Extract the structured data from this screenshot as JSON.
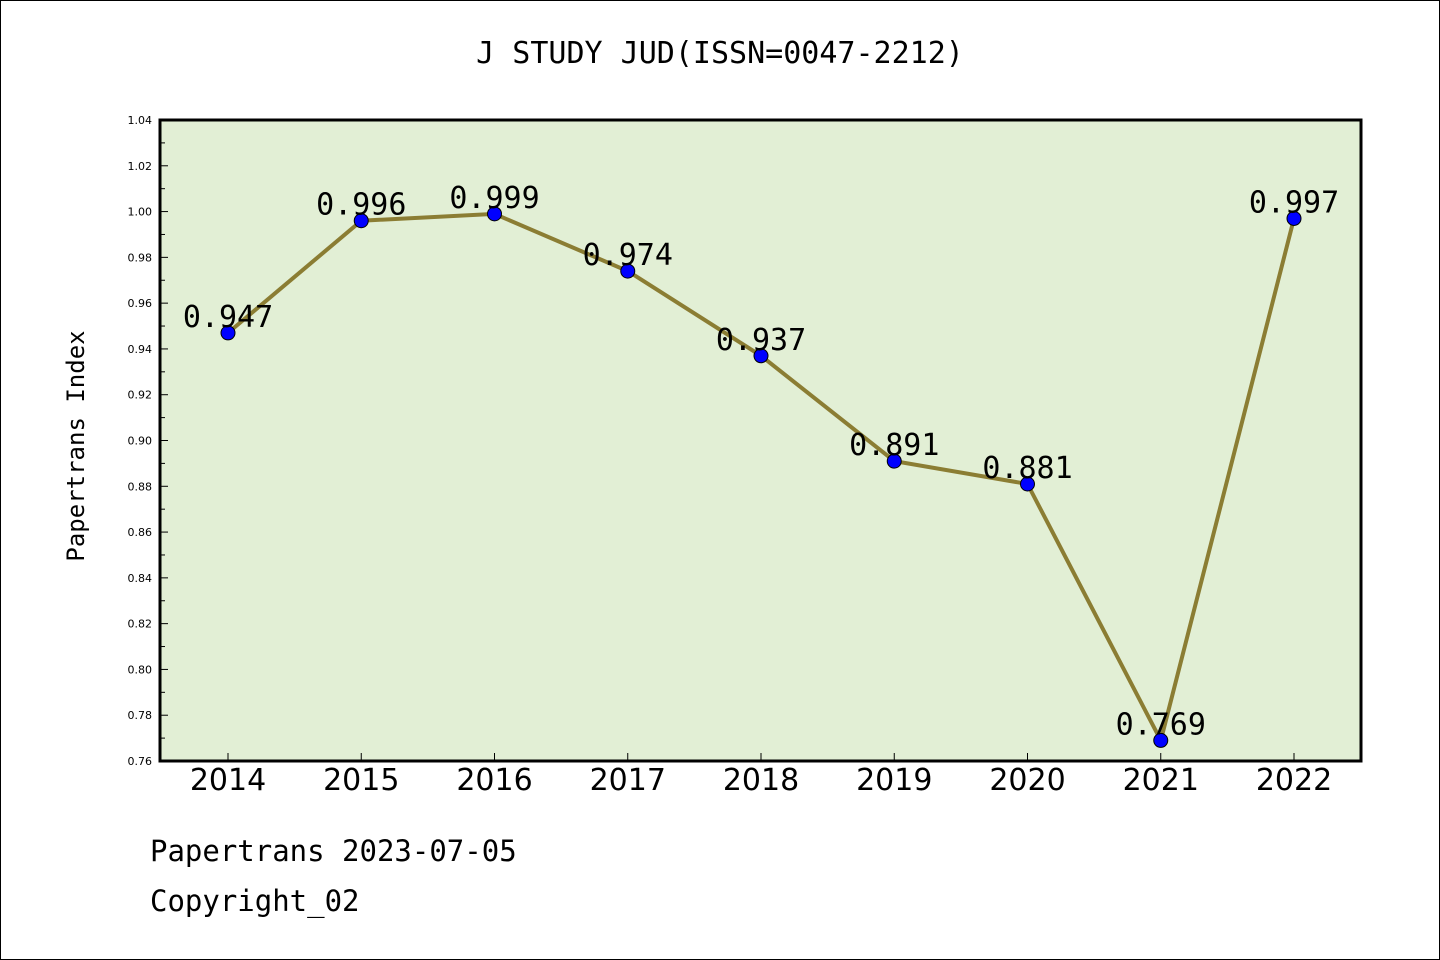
{
  "footer": {
    "line1": "Papertrans 2023-07-05",
    "line2": "Copyright_02"
  },
  "chart_data": {
    "type": "line",
    "title": "J STUDY JUD(ISSN=0047-2212)",
    "xlabel": "",
    "ylabel": "Papertrans Index",
    "x": [
      "2014",
      "2015",
      "2016",
      "2017",
      "2018",
      "2019",
      "2020",
      "2021",
      "2022"
    ],
    "series": [
      {
        "values": [
          0.947,
          0.996,
          0.999,
          0.974,
          0.937,
          0.891,
          0.881,
          0.769,
          0.997
        ],
        "data_labels": [
          "0.947",
          "0.996",
          "0.999",
          "0.974",
          "0.937",
          "0.891",
          "0.881",
          "0.769",
          "0.997"
        ],
        "line_color": "#8b7d33",
        "marker_color": "#0000ff"
      }
    ],
    "ylim": [
      0.76,
      1.04
    ],
    "yticks": [
      "0.76",
      "0.78",
      "0.80",
      "0.82",
      "0.84",
      "0.86",
      "0.88",
      "0.90",
      "0.92",
      "0.94",
      "0.96",
      "0.98",
      "1.00",
      "1.02",
      "1.04"
    ],
    "plot_background": "#e2efd5",
    "grid": false,
    "legend": "none"
  }
}
